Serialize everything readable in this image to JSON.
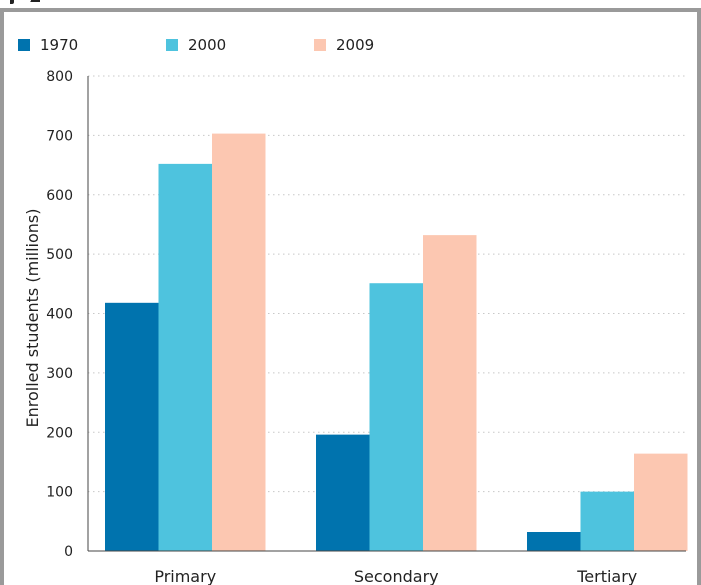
{
  "chart_data": {
    "type": "bar",
    "categories": [
      "Primary",
      "Secondary",
      "Tertiary"
    ],
    "series": [
      {
        "name": "1970",
        "color": "#0073ae",
        "values": [
          418,
          196,
          32
        ]
      },
      {
        "name": "2000",
        "color": "#4ec3de",
        "values": [
          652,
          451,
          100
        ]
      },
      {
        "name": "2009",
        "color": "#fcc7b1",
        "values": [
          703,
          532,
          164
        ]
      }
    ],
    "ylabel": "Enrolled students (millions)",
    "xlabel": "",
    "ylim": [
      0,
      800
    ],
    "yticks": [
      0,
      100,
      200,
      300,
      400,
      500,
      600,
      700,
      800
    ],
    "grid": true,
    "legend_position": "top-left"
  }
}
